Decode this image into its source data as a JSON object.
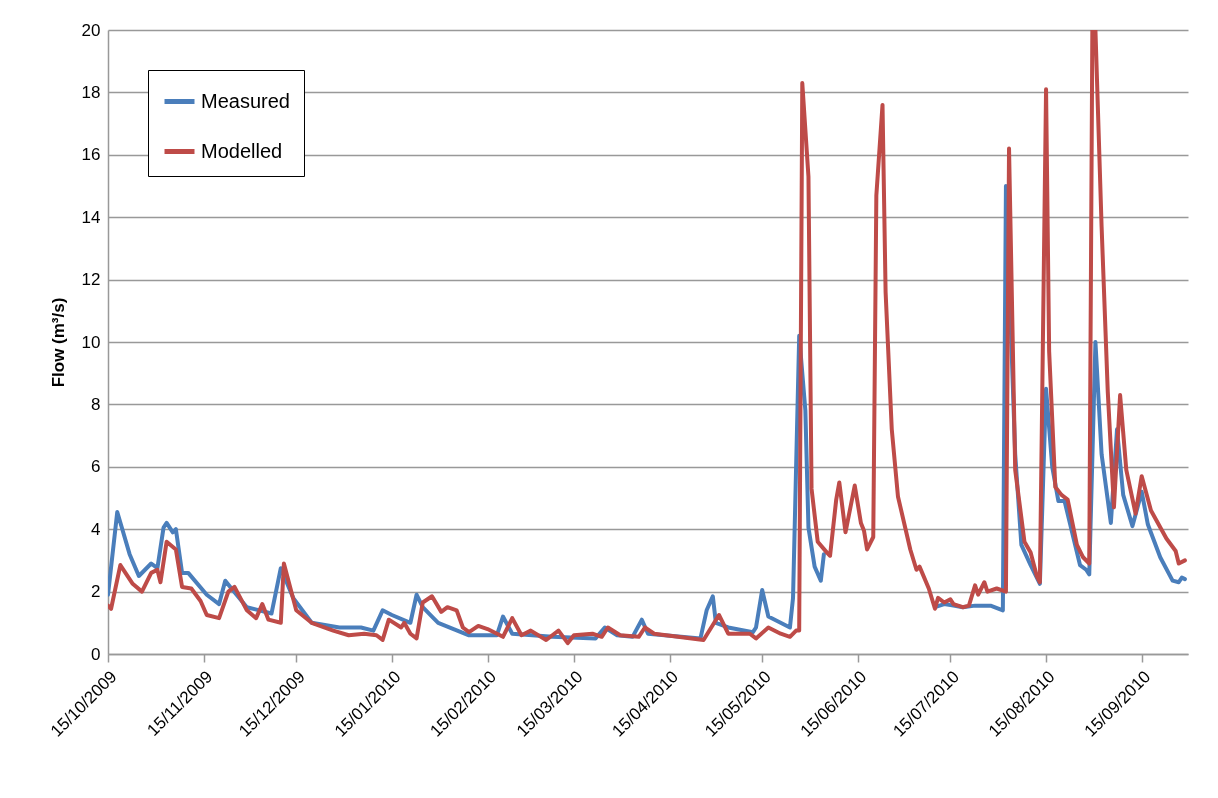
{
  "chart_data": {
    "type": "line",
    "ylabel": "Flow (m³/s)",
    "xlim": [
      "2009-10-15",
      "2010-09-30"
    ],
    "ylim": [
      0,
      20
    ],
    "yticks": [
      0,
      2,
      4,
      6,
      8,
      10,
      12,
      14,
      16,
      18,
      20
    ],
    "xticks": [
      {
        "value": "2009-10-15",
        "label": "15/10/2009"
      },
      {
        "value": "2009-11-15",
        "label": "15/11/2009"
      },
      {
        "value": "2009-12-15",
        "label": "15/12/2009"
      },
      {
        "value": "2010-01-15",
        "label": "15/01/2010"
      },
      {
        "value": "2010-02-15",
        "label": "15/02/2010"
      },
      {
        "value": "2010-03-15",
        "label": "15/03/2010"
      },
      {
        "value": "2010-04-15",
        "label": "15/04/2010"
      },
      {
        "value": "2010-05-15",
        "label": "15/05/2010"
      },
      {
        "value": "2010-06-15",
        "label": "15/06/2010"
      },
      {
        "value": "2010-07-15",
        "label": "15/07/2010"
      },
      {
        "value": "2010-08-15",
        "label": "15/08/2010"
      },
      {
        "value": "2010-09-15",
        "label": "15/09/2010"
      }
    ],
    "grid": "y",
    "legend": "top left",
    "series": [
      {
        "name": "Measured",
        "color": "#4a7ebb",
        "x": [
          "2009-10-15",
          "2009-10-18",
          "2009-10-22",
          "2009-10-25",
          "2009-10-29",
          "2009-10-31",
          "2009-11-02",
          "2009-11-03",
          "2009-11-05",
          "2009-11-06",
          "2009-11-08",
          "2009-11-10",
          "2009-11-16",
          "2009-11-20",
          "2009-11-22",
          "2009-11-24",
          "2009-11-29",
          "2009-12-07",
          "2009-12-10",
          "2009-12-14",
          "2009-12-20",
          "2009-12-29",
          "2010-01-05",
          "2010-01-09",
          "2010-01-12",
          "2010-01-15",
          "2010-01-21",
          "2010-01-23",
          "2010-01-25",
          "2010-01-28",
          "2010-01-30",
          "2010-02-09",
          "2010-02-18",
          "2010-02-20",
          "2010-02-23",
          "2010-03-08",
          "2010-03-22",
          "2010-03-25",
          "2010-03-29",
          "2010-04-03",
          "2010-04-06",
          "2010-04-08",
          "2010-04-25",
          "2010-04-27",
          "2010-04-29",
          "2010-04-30",
          "2010-05-04",
          "2010-05-12",
          "2010-05-13",
          "2010-05-15",
          "2010-05-17",
          "2010-05-24",
          "2010-05-25",
          "2010-05-27",
          "2010-05-29",
          "2010-05-30",
          "2010-06-01",
          "2010-06-03",
          "2010-06-04",
          "2010-06-06",
          "2010-06-08",
          "2010-06-09",
          "2010-06-11",
          "2010-06-14",
          "2010-06-16",
          "2010-06-18",
          "2010-06-20",
          "2010-06-21",
          "2010-06-23",
          "2010-06-24",
          "2010-06-26",
          "2010-06-28",
          "2010-07-02",
          "2010-07-05",
          "2010-07-08",
          "2010-07-10",
          "2010-07-13",
          "2010-07-16",
          "2010-07-19",
          "2010-07-23",
          "2010-07-28",
          "2010-08-01",
          "2010-08-02",
          "2010-08-05",
          "2010-08-07",
          "2010-08-10",
          "2010-08-13",
          "2010-08-15",
          "2010-08-17",
          "2010-08-19",
          "2010-08-21",
          "2010-08-26",
          "2010-08-28",
          "2010-08-29",
          "2010-08-31",
          "2010-09-02",
          "2010-09-05",
          "2010-09-07",
          "2010-09-09",
          "2010-09-12",
          "2010-09-15",
          "2010-09-17",
          "2010-09-21",
          "2010-09-25",
          "2010-09-27",
          "2010-09-28",
          "2010-09-29"
        ],
        "values": [
          1.9,
          4.55,
          3.2,
          2.5,
          2.9,
          2.75,
          4.05,
          4.2,
          3.9,
          4.0,
          2.6,
          2.6,
          1.9,
          1.6,
          2.35,
          2.1,
          1.5,
          1.3,
          2.75,
          1.8,
          1.0,
          0.85,
          0.85,
          0.75,
          1.4,
          1.25,
          1.0,
          1.9,
          1.5,
          1.2,
          1.0,
          0.6,
          0.6,
          1.2,
          0.65,
          0.55,
          0.5,
          0.85,
          0.6,
          0.55,
          1.1,
          0.65,
          0.5,
          1.4,
          1.85,
          1.0,
          0.85,
          0.7,
          0.85,
          2.05,
          1.2,
          0.85,
          1.8,
          10.2,
          7.8,
          4.05,
          2.8,
          2.35,
          3.2,
          null,
          null,
          null,
          null,
          null,
          null,
          null,
          null,
          null,
          null,
          null,
          null,
          null,
          null,
          null,
          null,
          1.5,
          1.6,
          1.55,
          1.5,
          1.55,
          1.55,
          1.4,
          15.0,
          6.4,
          3.5,
          2.85,
          2.25,
          8.5,
          6.0,
          4.9,
          4.9,
          2.85,
          2.7,
          2.55,
          10.0,
          6.4,
          4.2,
          7.2,
          5.1,
          4.1,
          5.2,
          4.15,
          3.1,
          2.35,
          2.3,
          2.45,
          2.4
        ]
      },
      {
        "name": "Modelled",
        "color": "#be4b48",
        "x": [
          "2009-10-15",
          "2009-10-16",
          "2009-10-19",
          "2009-10-23",
          "2009-10-26",
          "2009-10-29",
          "2009-10-31",
          "2009-11-01",
          "2009-11-03",
          "2009-11-06",
          "2009-11-08",
          "2009-11-11",
          "2009-11-14",
          "2009-11-16",
          "2009-11-20",
          "2009-11-23",
          "2009-11-25",
          "2009-11-29",
          "2009-12-02",
          "2009-12-04",
          "2009-12-06",
          "2009-12-10",
          "2009-12-11",
          "2009-12-15",
          "2009-12-20",
          "2009-12-27",
          "2010-01-01",
          "2010-01-06",
          "2010-01-10",
          "2010-01-12",
          "2010-01-14",
          "2010-01-18",
          "2010-01-19",
          "2010-01-21",
          "2010-01-23",
          "2010-01-25",
          "2010-01-28",
          "2010-01-31",
          "2010-02-02",
          "2010-02-05",
          "2010-02-07",
          "2010-02-09",
          "2010-02-12",
          "2010-02-15",
          "2010-02-20",
          "2010-02-23",
          "2010-02-26",
          "2010-03-01",
          "2010-03-06",
          "2010-03-08",
          "2010-03-10",
          "2010-03-13",
          "2010-03-15",
          "2010-03-21",
          "2010-03-24",
          "2010-03-26",
          "2010-03-30",
          "2010-04-05",
          "2010-04-07",
          "2010-04-10",
          "2010-04-26",
          "2010-05-01",
          "2010-05-04",
          "2010-05-11",
          "2010-05-13",
          "2010-05-17",
          "2010-05-21",
          "2010-05-24",
          "2010-05-26",
          "2010-05-27",
          "2010-05-28",
          "2010-05-30",
          "2010-05-31",
          "2010-06-02",
          "2010-06-05",
          "2010-06-06",
          "2010-06-08",
          "2010-06-09",
          "2010-06-11",
          "2010-06-14",
          "2010-06-16",
          "2010-06-17",
          "2010-06-18",
          "2010-06-20",
          "2010-06-21",
          "2010-06-23",
          "2010-06-24",
          "2010-06-26",
          "2010-06-28",
          "2010-07-02",
          "2010-07-04",
          "2010-07-05",
          "2010-07-08",
          "2010-07-10",
          "2010-07-11",
          "2010-07-13",
          "2010-07-15",
          "2010-07-16",
          "2010-07-19",
          "2010-07-21",
          "2010-07-23",
          "2010-07-24",
          "2010-07-26",
          "2010-07-27",
          "2010-07-30",
          "2010-08-02",
          "2010-08-03",
          "2010-08-05",
          "2010-08-08",
          "2010-08-10",
          "2010-08-12",
          "2010-08-13",
          "2010-08-15",
          "2010-08-16",
          "2010-08-18",
          "2010-08-20",
          "2010-08-22",
          "2010-08-25",
          "2010-08-27",
          "2010-08-29",
          "2010-08-30",
          "2010-08-31",
          "2010-09-02",
          "2010-09-04",
          "2010-09-06",
          "2010-09-08",
          "2010-09-10",
          "2010-09-13",
          "2010-09-15",
          "2010-09-18",
          "2010-09-23",
          "2010-09-26",
          "2010-09-27",
          "2010-09-29"
        ],
        "values": [
          1.55,
          1.45,
          2.85,
          2.25,
          2.0,
          2.6,
          2.7,
          2.3,
          3.6,
          3.35,
          2.15,
          2.1,
          1.7,
          1.25,
          1.15,
          2.0,
          2.15,
          1.4,
          1.15,
          1.6,
          1.1,
          1.0,
          2.9,
          1.4,
          1.0,
          0.75,
          0.6,
          0.65,
          0.6,
          0.45,
          1.1,
          0.85,
          1.0,
          0.65,
          0.5,
          1.65,
          1.85,
          1.35,
          1.5,
          1.4,
          0.85,
          0.7,
          0.9,
          0.8,
          0.55,
          1.15,
          0.6,
          0.75,
          0.45,
          0.6,
          0.75,
          0.35,
          0.6,
          0.65,
          0.55,
          0.85,
          0.6,
          0.55,
          0.85,
          0.65,
          0.45,
          1.25,
          0.65,
          0.65,
          0.5,
          0.85,
          0.65,
          0.55,
          0.75,
          0.75,
          18.3,
          15.3,
          5.3,
          3.6,
          3.25,
          3.15,
          4.95,
          5.5,
          3.9,
          5.4,
          4.2,
          3.95,
          3.35,
          3.75,
          14.7,
          17.6,
          11.6,
          7.2,
          5.05,
          3.35,
          2.7,
          2.8,
          2.1,
          1.45,
          1.8,
          1.65,
          1.75,
          1.6,
          1.5,
          1.55,
          2.2,
          1.9,
          2.3,
          2.0,
          2.1,
          2.0,
          16.2,
          5.9,
          3.6,
          3.25,
          2.5,
          2.3,
          18.1,
          9.7,
          5.35,
          5.1,
          4.95,
          3.5,
          3.1,
          2.9,
          20,
          20,
          13.7,
          8.4,
          4.7,
          8.3,
          5.9,
          4.5,
          5.7,
          4.6,
          3.7,
          3.3,
          2.9,
          3.0
        ]
      }
    ]
  }
}
